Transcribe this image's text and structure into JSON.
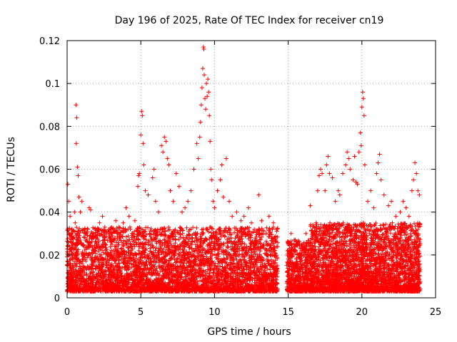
{
  "chart_data": {
    "type": "scatter",
    "title": "Day 196 of 2025, Rate Of TEC Index for receiver cn19",
    "xlabel": "GPS time / hours",
    "ylabel": "ROTI / TECUs",
    "xlim": [
      0,
      25
    ],
    "ylim": [
      0,
      0.12
    ],
    "x_ticks": [
      0,
      5,
      10,
      15,
      20,
      25
    ],
    "y_ticks": [
      0,
      0.02,
      0.04,
      0.06,
      0.08,
      0.1,
      0.12
    ],
    "x_tick_labels": [
      "0",
      "5",
      "10",
      "15",
      "20",
      "25"
    ],
    "y_tick_labels": [
      "0",
      "0.02",
      "0.04",
      "0.06",
      "0.08",
      "0.1",
      "0.12"
    ],
    "grid": true,
    "marker": "+",
    "series": [
      {
        "name": "ROTI",
        "color": "#ff0000",
        "points": [
          [
            0.05,
            0.053
          ],
          [
            0.1,
            0.045
          ],
          [
            0.2,
            0.038
          ],
          [
            0.3,
            0.03
          ],
          [
            0.4,
            0.025
          ],
          [
            0.5,
            0.04
          ],
          [
            0.55,
            0.035
          ],
          [
            0.6,
            0.09
          ],
          [
            0.65,
            0.084
          ],
          [
            0.62,
            0.072
          ],
          [
            0.7,
            0.061
          ],
          [
            0.75,
            0.057
          ],
          [
            0.8,
            0.047
          ],
          [
            0.9,
            0.04
          ],
          [
            1.0,
            0.045
          ],
          [
            1.2,
            0.032
          ],
          [
            1.5,
            0.042
          ],
          [
            1.6,
            0.041
          ],
          [
            1.8,
            0.03
          ],
          [
            2.0,
            0.028
          ],
          [
            2.2,
            0.035
          ],
          [
            2.4,
            0.038
          ],
          [
            2.6,
            0.025
          ],
          [
            3.0,
            0.03
          ],
          [
            3.3,
            0.036
          ],
          [
            3.5,
            0.033
          ],
          [
            3.8,
            0.035
          ],
          [
            4.0,
            0.042
          ],
          [
            4.2,
            0.038
          ],
          [
            4.4,
            0.03
          ],
          [
            4.6,
            0.036
          ],
          [
            4.8,
            0.052
          ],
          [
            4.85,
            0.057
          ],
          [
            4.9,
            0.058
          ],
          [
            5.0,
            0.076
          ],
          [
            5.05,
            0.087
          ],
          [
            5.1,
            0.085
          ],
          [
            5.15,
            0.072
          ],
          [
            5.2,
            0.062
          ],
          [
            5.3,
            0.05
          ],
          [
            5.5,
            0.048
          ],
          [
            5.8,
            0.056
          ],
          [
            5.9,
            0.06
          ],
          [
            6.0,
            0.045
          ],
          [
            6.2,
            0.04
          ],
          [
            6.4,
            0.071
          ],
          [
            6.5,
            0.068
          ],
          [
            6.6,
            0.075
          ],
          [
            6.7,
            0.073
          ],
          [
            6.8,
            0.065
          ],
          [
            6.9,
            0.062
          ],
          [
            7.0,
            0.05
          ],
          [
            7.2,
            0.045
          ],
          [
            7.4,
            0.058
          ],
          [
            7.6,
            0.052
          ],
          [
            7.8,
            0.04
          ],
          [
            8.0,
            0.042
          ],
          [
            8.2,
            0.045
          ],
          [
            8.4,
            0.05
          ],
          [
            8.6,
            0.06
          ],
          [
            8.8,
            0.072
          ],
          [
            8.9,
            0.065
          ],
          [
            9.0,
            0.075
          ],
          [
            9.05,
            0.082
          ],
          [
            9.1,
            0.09
          ],
          [
            9.15,
            0.098
          ],
          [
            9.2,
            0.107
          ],
          [
            9.25,
            0.117
          ],
          [
            9.28,
            0.116
          ],
          [
            9.3,
            0.104
          ],
          [
            9.35,
            0.093
          ],
          [
            9.4,
            0.088
          ],
          [
            9.45,
            0.1
          ],
          [
            9.5,
            0.094
          ],
          [
            9.55,
            0.102
          ],
          [
            9.6,
            0.096
          ],
          [
            9.65,
            0.085
          ],
          [
            9.7,
            0.073
          ],
          [
            9.75,
            0.06
          ],
          [
            9.8,
            0.055
          ],
          [
            9.9,
            0.045
          ],
          [
            10.0,
            0.042
          ],
          [
            10.2,
            0.05
          ],
          [
            10.4,
            0.055
          ],
          [
            10.5,
            0.062
          ],
          [
            10.6,
            0.047
          ],
          [
            10.8,
            0.065
          ],
          [
            11.0,
            0.045
          ],
          [
            11.2,
            0.038
          ],
          [
            11.5,
            0.04
          ],
          [
            11.8,
            0.036
          ],
          [
            12.0,
            0.038
          ],
          [
            12.3,
            0.042
          ],
          [
            12.5,
            0.035
          ],
          [
            12.7,
            0.032
          ],
          [
            13.0,
            0.048
          ],
          [
            13.2,
            0.036
          ],
          [
            13.5,
            0.03
          ],
          [
            13.7,
            0.038
          ],
          [
            14.0,
            0.035
          ],
          [
            14.2,
            0.032
          ],
          [
            15.0,
            0.025
          ],
          [
            15.2,
            0.03
          ],
          [
            15.5,
            0.022
          ],
          [
            15.8,
            0.018
          ],
          [
            16.0,
            0.025
          ],
          [
            16.2,
            0.03
          ],
          [
            16.5,
            0.043
          ],
          [
            16.7,
            0.03
          ],
          [
            16.9,
            0.035
          ],
          [
            17.0,
            0.05
          ],
          [
            17.1,
            0.057
          ],
          [
            17.2,
            0.06
          ],
          [
            17.3,
            0.058
          ],
          [
            17.5,
            0.05
          ],
          [
            17.6,
            0.062
          ],
          [
            17.7,
            0.066
          ],
          [
            17.8,
            0.058
          ],
          [
            18.0,
            0.056
          ],
          [
            18.2,
            0.045
          ],
          [
            18.4,
            0.05
          ],
          [
            18.5,
            0.048
          ],
          [
            18.7,
            0.058
          ],
          [
            18.9,
            0.062
          ],
          [
            19.0,
            0.068
          ],
          [
            19.1,
            0.065
          ],
          [
            19.2,
            0.06
          ],
          [
            19.4,
            0.055
          ],
          [
            19.5,
            0.066
          ],
          [
            19.6,
            0.054
          ],
          [
            19.7,
            0.053
          ],
          [
            19.8,
            0.068
          ],
          [
            19.9,
            0.077
          ],
          [
            19.95,
            0.071
          ],
          [
            20.0,
            0.089
          ],
          [
            20.05,
            0.096
          ],
          [
            20.1,
            0.093
          ],
          [
            20.15,
            0.085
          ],
          [
            20.2,
            0.062
          ],
          [
            20.4,
            0.045
          ],
          [
            20.6,
            0.05
          ],
          [
            20.8,
            0.042
          ],
          [
            21.0,
            0.058
          ],
          [
            21.1,
            0.063
          ],
          [
            21.2,
            0.067
          ],
          [
            21.3,
            0.055
          ],
          [
            21.5,
            0.048
          ],
          [
            21.8,
            0.043
          ],
          [
            22.0,
            0.045
          ],
          [
            22.3,
            0.038
          ],
          [
            22.6,
            0.04
          ],
          [
            22.8,
            0.045
          ],
          [
            23.0,
            0.042
          ],
          [
            23.2,
            0.038
          ],
          [
            23.4,
            0.05
          ],
          [
            23.5,
            0.055
          ],
          [
            23.6,
            0.063
          ],
          [
            23.7,
            0.058
          ],
          [
            23.8,
            0.05
          ],
          [
            23.9,
            0.048
          ]
        ]
      }
    ],
    "dense_segments": [
      {
        "x_from": 0,
        "x_to": 14.3,
        "y_from": 0.003,
        "y_to": 0.033,
        "count": 4500
      },
      {
        "x_from": 14.9,
        "x_to": 16.5,
        "y_from": 0.003,
        "y_to": 0.027,
        "count": 600
      },
      {
        "x_from": 16.5,
        "x_to": 23.95,
        "y_from": 0.003,
        "y_to": 0.035,
        "count": 3200
      }
    ]
  }
}
